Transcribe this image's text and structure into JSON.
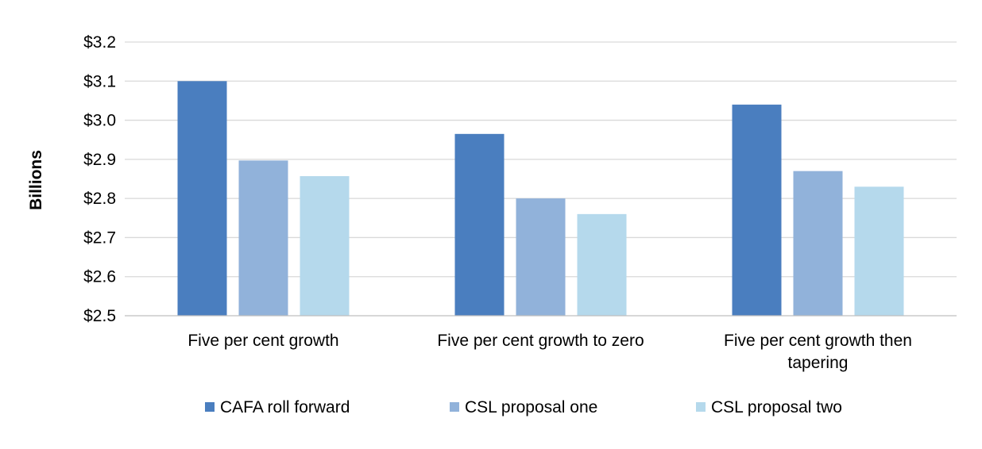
{
  "chart_data": {
    "type": "bar",
    "title": "",
    "xlabel": "",
    "ylabel": "Billions",
    "ylim": [
      2.5,
      3.2
    ],
    "yticks": [
      2.5,
      2.6,
      2.7,
      2.8,
      2.9,
      3.0,
      3.1,
      3.2
    ],
    "ytick_labels": [
      "$2.5",
      "$2.6",
      "$2.7",
      "$2.8",
      "$2.9",
      "$3.0",
      "$3.1",
      "$3.2"
    ],
    "grid": true,
    "legend_position": "bottom",
    "categories": [
      [
        "Five per cent growth"
      ],
      [
        "Five per cent growth to zero"
      ],
      [
        "Five per cent growth then",
        "tapering"
      ]
    ],
    "series": [
      {
        "name": "CAFA roll forward",
        "color": "#4a7ebf",
        "values": [
          3.1,
          2.965,
          3.04
        ]
      },
      {
        "name": "CSL proposal one",
        "color": "#91b2da",
        "values": [
          2.897,
          2.8,
          2.87
        ]
      },
      {
        "name": "CSL proposal two",
        "color": "#b5d9ec",
        "values": [
          2.857,
          2.76,
          2.83
        ]
      }
    ]
  }
}
